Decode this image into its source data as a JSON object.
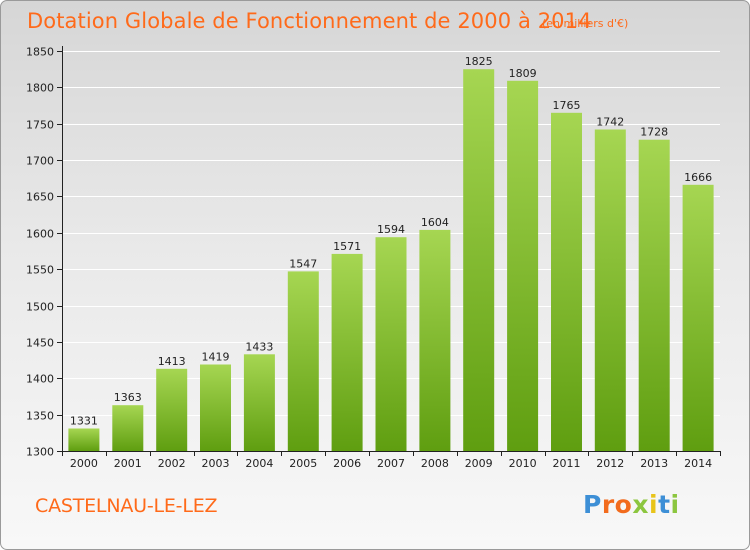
{
  "colors": {
    "title": "#ff6a1a",
    "bar_light": "#a6d652",
    "bar_dark": "#5f9e10",
    "grid": "#ffffff",
    "axis": "#222222"
  },
  "brand": {
    "logo_text": "Proxiti",
    "letter_colors": [
      "#3d8fd6",
      "#f26b1d",
      "#f26b1d",
      "#8cc63f",
      "#e8c41a",
      "#3d8fd6",
      "#8cc63f"
    ]
  },
  "commune": {
    "name": "CASTELNAU-LE-LEZ"
  },
  "chart_data": {
    "type": "bar",
    "title": "Dotation Globale de Fonctionnement de 2000 à 2014",
    "subtitle": "(en milliers d'€)",
    "xlabel": "",
    "ylabel": "",
    "categories": [
      "2000",
      "2001",
      "2002",
      "2003",
      "2004",
      "2005",
      "2006",
      "2007",
      "2008",
      "2009",
      "2010",
      "2011",
      "2012",
      "2013",
      "2014"
    ],
    "values": [
      1331,
      1363,
      1413,
      1419,
      1433,
      1547,
      1571,
      1594,
      1604,
      1825,
      1809,
      1765,
      1742,
      1728,
      1666
    ],
    "ylim": [
      1300,
      1850
    ],
    "yticks": [
      1300,
      1350,
      1400,
      1450,
      1500,
      1550,
      1600,
      1650,
      1700,
      1750,
      1800,
      1850
    ],
    "grid": true,
    "legend": "none"
  }
}
